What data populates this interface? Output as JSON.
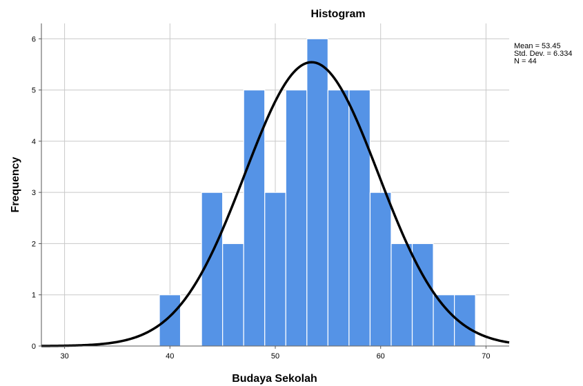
{
  "chart_data": {
    "type": "bar",
    "title": "Histogram",
    "xlabel": "Budaya Sekolah",
    "ylabel": "Frequency",
    "xlim": [
      27.8,
      72.2
    ],
    "ylim": [
      0,
      6.3
    ],
    "x_ticks": [
      30,
      40,
      50,
      60,
      70
    ],
    "y_ticks": [
      0,
      1,
      2,
      3,
      4,
      5,
      6
    ],
    "bin_width": 2,
    "bins": [
      {
        "x": 40,
        "value": 1
      },
      {
        "x": 44,
        "value": 3
      },
      {
        "x": 46,
        "value": 2
      },
      {
        "x": 48,
        "value": 5
      },
      {
        "x": 50,
        "value": 3
      },
      {
        "x": 52,
        "value": 5
      },
      {
        "x": 54,
        "value": 6
      },
      {
        "x": 56,
        "value": 5
      },
      {
        "x": 58,
        "value": 5
      },
      {
        "x": 60,
        "value": 3
      },
      {
        "x": 62,
        "value": 2
      },
      {
        "x": 64,
        "value": 2
      },
      {
        "x": 66,
        "value": 1
      },
      {
        "x": 68,
        "value": 1
      }
    ],
    "normal_curve": {
      "mean": 53.45,
      "sd": 6.334,
      "n": 44
    },
    "stats_text": [
      "Mean = 53.45",
      "Std. Dev. = 6.334",
      "N = 44"
    ],
    "bar_color": "#5593e6",
    "curve_color": "#000000",
    "grid": true
  }
}
